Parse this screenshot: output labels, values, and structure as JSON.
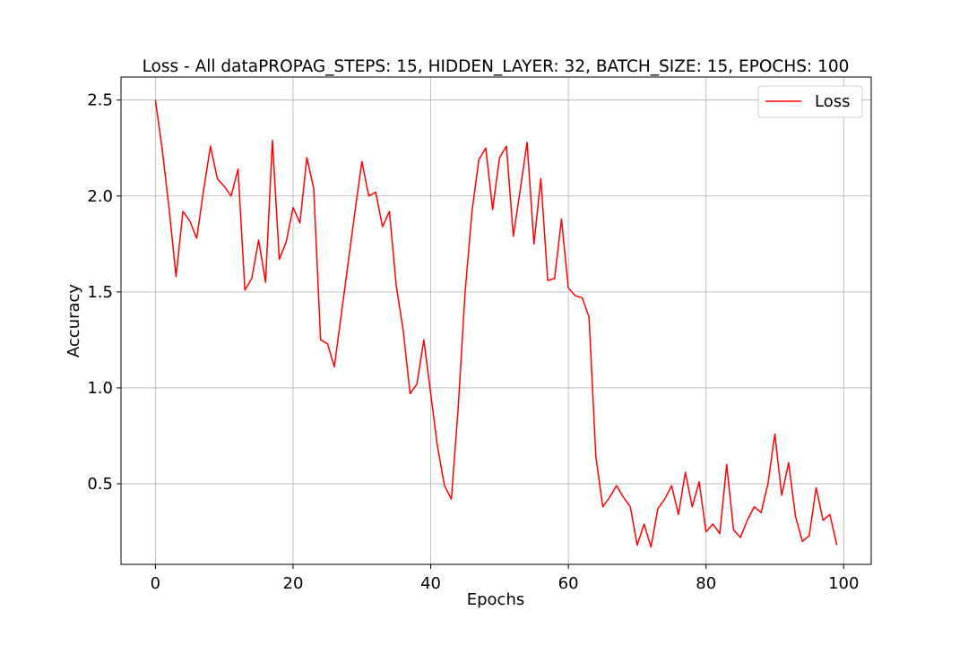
{
  "chart_data": {
    "type": "line",
    "title": "Loss - All dataPROPAG_STEPS: 15, HIDDEN_LAYER: 32, BATCH_SIZE: 15, EPOCHS: 100",
    "xlabel": "Epochs",
    "ylabel": "Accuracy",
    "xlim": [
      -5,
      104
    ],
    "ylim": [
      0.08,
      2.62
    ],
    "xticks": [
      0,
      20,
      40,
      60,
      80,
      100
    ],
    "yticks": [
      0.5,
      1.0,
      1.5,
      2.0,
      2.5
    ],
    "xtick_labels": [
      "0",
      "20",
      "40",
      "60",
      "80",
      "100"
    ],
    "ytick_labels": [
      "0.5",
      "1.0",
      "1.5",
      "2.0",
      "2.5"
    ],
    "grid": true,
    "legend": "top-right",
    "series": [
      {
        "name": "Loss",
        "color": "#ff0000",
        "x": [
          0,
          1,
          2,
          3,
          4,
          5,
          6,
          7,
          8,
          9,
          10,
          11,
          12,
          13,
          14,
          15,
          16,
          17,
          18,
          19,
          20,
          21,
          22,
          23,
          24,
          25,
          26,
          27,
          28,
          29,
          30,
          31,
          32,
          33,
          34,
          35,
          36,
          37,
          38,
          39,
          40,
          41,
          42,
          43,
          44,
          45,
          46,
          47,
          48,
          49,
          50,
          51,
          52,
          53,
          54,
          55,
          56,
          57,
          58,
          59,
          60,
          61,
          62,
          63,
          64,
          65,
          66,
          67,
          68,
          69,
          70,
          71,
          72,
          73,
          74,
          75,
          76,
          77,
          78,
          79,
          80,
          81,
          82,
          83,
          84,
          85,
          86,
          87,
          88,
          89,
          90,
          91,
          92,
          93,
          94,
          95,
          96,
          97,
          98,
          99
        ],
        "values": [
          2.5,
          2.24,
          1.93,
          1.58,
          1.92,
          1.87,
          1.78,
          2.03,
          2.26,
          2.09,
          2.05,
          2.0,
          2.14,
          1.51,
          1.57,
          1.77,
          1.55,
          2.29,
          1.67,
          1.76,
          1.94,
          1.86,
          2.2,
          2.04,
          1.25,
          1.23,
          1.11,
          1.38,
          1.65,
          1.92,
          2.18,
          2.0,
          2.02,
          1.84,
          1.92,
          1.53,
          1.3,
          0.97,
          1.02,
          1.25,
          0.97,
          0.69,
          0.49,
          0.42,
          0.9,
          1.5,
          1.92,
          2.19,
          2.25,
          1.93,
          2.2,
          2.26,
          1.79,
          2.03,
          2.28,
          1.75,
          2.09,
          1.56,
          1.57,
          1.88,
          1.52,
          1.48,
          1.47,
          1.37,
          0.64,
          0.38,
          0.43,
          0.49,
          0.43,
          0.38,
          0.18,
          0.29,
          0.17,
          0.37,
          0.42,
          0.49,
          0.34,
          0.56,
          0.38,
          0.51,
          0.25,
          0.29,
          0.24,
          0.6,
          0.26,
          0.22,
          0.31,
          0.38,
          0.35,
          0.5,
          0.76,
          0.44,
          0.61,
          0.33,
          0.2,
          0.23,
          0.48,
          0.31,
          0.34,
          0.18
        ]
      }
    ]
  }
}
